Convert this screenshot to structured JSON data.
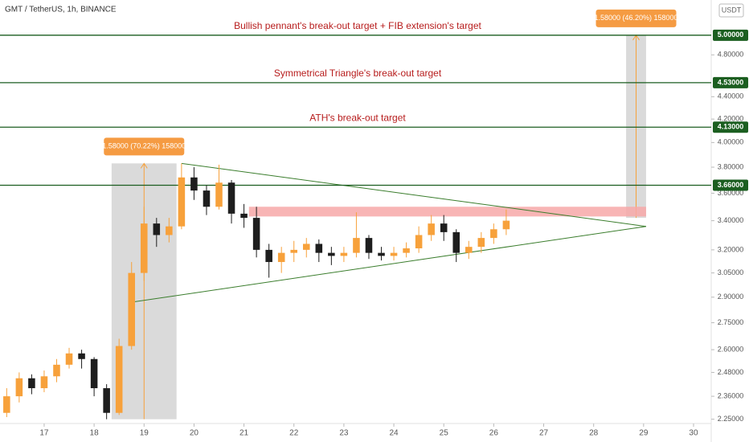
{
  "chart_data": {
    "type": "candlestick",
    "title": "GMT / TetherUS, 1h, BINANCE",
    "currency": "USDT",
    "log_scale": true,
    "up_color": "#f7a13b",
    "down_color": "#1e1e1e",
    "xlim": [
      16.116,
      30.354
    ],
    "xticks": [
      17,
      18,
      19,
      20,
      21,
      22,
      23,
      24,
      25,
      26,
      27,
      28,
      29,
      30
    ],
    "ylim": [
      2.23,
      5.38
    ],
    "yticks": [
      {
        "value": 4.8,
        "label": "4.80000"
      },
      {
        "value": 4.4,
        "label": "4.40000"
      },
      {
        "value": 4.2,
        "label": "4.20000"
      },
      {
        "value": 4.0,
        "label": "4.00000"
      },
      {
        "value": 3.8,
        "label": "3.80000"
      },
      {
        "value": 3.6,
        "label": "3.60000"
      },
      {
        "value": 3.4,
        "label": "3.40000"
      },
      {
        "value": 3.2,
        "label": "3.20000"
      },
      {
        "value": 3.05,
        "label": "3.05000"
      },
      {
        "value": 2.9,
        "label": "2.90000"
      },
      {
        "value": 2.75,
        "label": "2.75000"
      },
      {
        "value": 2.6,
        "label": "2.60000"
      },
      {
        "value": 2.48,
        "label": "2.48000"
      },
      {
        "value": 2.36,
        "label": "2.36000"
      },
      {
        "value": 2.25,
        "label": "2.25000"
      }
    ],
    "x": [
      16.25,
      16.5,
      16.75,
      17,
      17.25,
      17.5,
      17.75,
      18,
      18.25,
      18.5,
      18.75,
      19,
      19.25,
      19.5,
      19.75,
      20,
      20.25,
      20.5,
      20.75,
      21,
      21.25,
      21.5,
      21.75,
      22,
      22.25,
      22.5,
      22.75,
      23,
      23.25,
      23.5,
      23.75,
      24,
      24.25,
      24.5,
      24.75,
      25,
      25.25,
      25.5,
      25.75,
      26,
      26.25
    ],
    "open": [
      2.28,
      2.36,
      2.45,
      2.4,
      2.46,
      2.52,
      2.58,
      2.55,
      2.4,
      2.28,
      2.62,
      3.05,
      3.38,
      3.3,
      3.36,
      3.72,
      3.62,
      3.5,
      3.68,
      3.45,
      3.42,
      3.2,
      3.12,
      3.18,
      3.2,
      3.24,
      3.18,
      3.16,
      3.18,
      3.28,
      3.18,
      3.16,
      3.18,
      3.21,
      3.3,
      3.38,
      3.32,
      3.18,
      3.22,
      3.28,
      3.34
    ],
    "high": [
      2.4,
      2.48,
      2.47,
      2.49,
      2.55,
      2.61,
      2.6,
      2.56,
      2.42,
      2.66,
      3.12,
      3.5,
      3.42,
      3.42,
      3.83,
      3.8,
      3.66,
      3.82,
      3.7,
      3.52,
      3.5,
      3.24,
      3.22,
      3.26,
      3.28,
      3.27,
      3.22,
      3.22,
      3.46,
      3.3,
      3.22,
      3.22,
      3.25,
      3.36,
      3.44,
      3.44,
      3.34,
      3.26,
      3.32,
      3.38,
      3.48
    ],
    "low": [
      2.26,
      2.33,
      2.37,
      2.38,
      2.43,
      2.5,
      2.5,
      2.36,
      2.25,
      2.27,
      2.6,
      3.0,
      3.22,
      3.25,
      3.34,
      3.55,
      3.44,
      3.48,
      3.38,
      3.35,
      3.15,
      3.02,
      3.05,
      3.12,
      3.15,
      3.12,
      3.1,
      3.12,
      3.15,
      3.14,
      3.13,
      3.13,
      3.15,
      3.18,
      3.26,
      3.26,
      3.12,
      3.14,
      3.18,
      3.24,
      3.3
    ],
    "close": [
      2.36,
      2.45,
      2.4,
      2.46,
      2.52,
      2.58,
      2.55,
      2.4,
      2.28,
      2.62,
      3.05,
      3.38,
      3.3,
      3.36,
      3.72,
      3.62,
      3.5,
      3.68,
      3.45,
      3.42,
      3.2,
      3.12,
      3.18,
      3.2,
      3.24,
      3.18,
      3.16,
      3.18,
      3.28,
      3.18,
      3.16,
      3.18,
      3.21,
      3.3,
      3.38,
      3.32,
      3.18,
      3.22,
      3.28,
      3.34,
      3.4
    ],
    "levels": [
      {
        "value": 5.0,
        "label": "5.00000",
        "text": "Bullish pennant's break-out target + FIB extension's target"
      },
      {
        "value": 4.53,
        "label": "4.53000",
        "text": "Symmetrical Triangle's break-out target"
      },
      {
        "value": 4.13,
        "label": "4.13000",
        "text": "ATH's break-out target"
      },
      {
        "value": 3.66,
        "label": "3.66000"
      }
    ],
    "level_color": "#1b5e20",
    "text_color": "#b71c1c",
    "zone": {
      "x": [
        21.1,
        29.05
      ],
      "low": 3.43,
      "high": 3.5,
      "color": "#f7a8a8"
    },
    "trendlines": [
      {
        "x": [
          19.75,
          29.05
        ],
        "y": [
          3.83,
          3.36
        ]
      },
      {
        "x": [
          18.75,
          29.05
        ],
        "y": [
          2.87,
          3.36
        ]
      }
    ],
    "measures": [
      {
        "x": [
          18.35,
          19.65
        ],
        "y": [
          2.25,
          3.83
        ],
        "label": "1.58000 (70.22%) 158000"
      },
      {
        "x": [
          28.65,
          29.05
        ],
        "y": [
          3.42,
          5.0
        ],
        "label": "1.58000 (46.20%) 158000"
      }
    ]
  }
}
